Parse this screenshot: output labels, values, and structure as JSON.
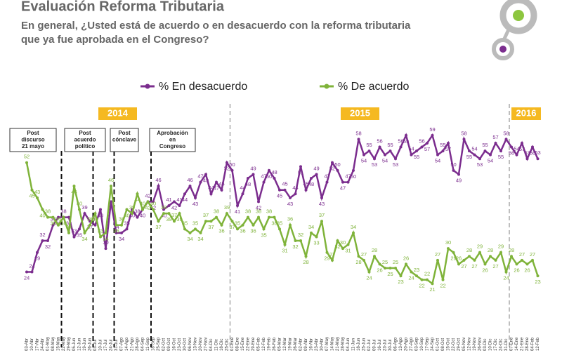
{
  "chart_data": {
    "type": "line",
    "title": "Evaluación Reforma Tributaria",
    "subtitle": [
      "En general, ¿Usted está de acuerdo o en desacuerdo con la reforma tributaria",
      "que ya fue aprobada en el Congreso?"
    ],
    "categories": [
      "03-Abr",
      "10-Abr",
      "17-Abr",
      "24-Abr",
      "01-May",
      "08-May",
      "15-May",
      "22-May",
      "29-May",
      "05-Jun",
      "12-Jun",
      "19-Jun",
      "26-Jun",
      "03-Jul",
      "10-Jul",
      "17-Jul",
      "24-Jul",
      "31-Jul",
      "07-Ago",
      "14-Ago",
      "21-Ago",
      "28-Ago",
      "04-Sep",
      "11-Sep",
      "18-Sep",
      "25-Sep",
      "02-Oct",
      "09-Oct",
      "16-Oct",
      "23-Oct",
      "30-Oct",
      "06-Nov",
      "13-Nov",
      "20-Nov",
      "27-Nov",
      "04-Dic",
      "11-Dic",
      "18-Dic",
      "25-Dic",
      "01-Ene",
      "08-Ene",
      "15-Ene",
      "22-Ene",
      "29-Ene",
      "05-Feb",
      "12-Feb",
      "19-Feb",
      "26-Feb",
      "05-Mar",
      "12-Mar",
      "19-Mar",
      "26-Mar",
      "02-Abr",
      "09-Abr",
      "16-Abr",
      "23-Abr",
      "30-Abr",
      "07-May",
      "14-May",
      "21-May",
      "28-May",
      "04-Jun",
      "11-Jun",
      "18-Jun",
      "25-Jun",
      "02-Jul",
      "09-Jul",
      "16-Jul",
      "23-Jul",
      "30-Jul",
      "06-Ago",
      "13-Ago",
      "20-Ago",
      "27-Ago",
      "03-Sep",
      "10-Sep",
      "17-Sep",
      "24-Sep",
      "01-Oct",
      "08-Oct",
      "15-Oct",
      "22-Oct",
      "29-Oct",
      "05-Nov",
      "12-Nov",
      "19-Nov",
      "26-Nov",
      "03-Dic",
      "10-Dic",
      "17-Dic",
      "24-Dic",
      "31-Dic",
      "07-Ene",
      "14-Ene",
      "21-Ene",
      "28-Ene",
      "04-Feb",
      "12-Feb"
    ],
    "series": [
      {
        "name": "% En desacuerdo",
        "color": "#7b2d8e",
        "values": [
          24,
          24,
          29,
          32,
          32,
          36,
          38,
          38,
          38,
          33,
          35,
          39,
          37,
          36,
          40,
          30,
          42,
          34,
          34,
          35,
          40,
          38,
          40,
          42,
          42,
          46,
          40,
          41,
          42,
          41,
          44,
          46,
          43,
          47,
          49,
          44,
          47,
          45,
          52,
          50,
          41,
          44,
          48,
          49,
          42,
          47,
          50,
          48,
          45,
          45,
          43,
          44,
          51,
          45,
          48,
          49,
          43,
          47,
          52,
          50,
          47,
          47,
          50,
          58,
          54,
          55,
          53,
          56,
          54,
          55,
          53,
          56,
          59,
          54,
          55,
          56,
          57,
          59,
          54,
          55,
          57,
          50,
          49,
          58,
          55,
          54,
          53,
          55,
          54,
          57,
          55,
          58,
          56,
          54,
          57,
          53,
          56,
          53
        ]
      },
      {
        "name": "% De acuerdo",
        "color": "#7fb33a",
        "values": [
          52,
          45,
          43,
          40,
          38,
          38,
          36,
          38,
          34,
          46,
          40,
          34,
          36,
          39,
          33,
          34,
          46,
          36,
          36,
          40,
          39,
          44,
          40,
          42,
          40,
          37,
          39,
          39,
          37,
          39,
          35,
          34,
          35,
          34,
          37,
          37,
          38,
          36,
          39,
          37,
          35,
          36,
          38,
          36,
          38,
          35,
          38,
          38,
          35,
          31,
          36,
          32,
          32,
          28,
          34,
          33,
          37,
          29,
          27,
          32,
          30,
          31,
          34,
          28,
          27,
          24,
          28,
          26,
          25,
          25,
          25,
          23,
          26,
          24,
          23,
          22,
          22,
          21,
          27,
          22,
          30,
          29,
          26,
          27,
          28,
          27,
          29,
          26,
          28,
          27,
          29,
          24,
          28,
          26,
          27,
          26,
          27,
          23
        ]
      }
    ],
    "annotations": [
      "Post discurso 21 mayo",
      "Post acuerdo político",
      "Post cónclave",
      "Aprobación en Congreso"
    ],
    "years": [
      "2014",
      "2015",
      "2016"
    ],
    "ylim": [
      16,
      64
    ]
  }
}
